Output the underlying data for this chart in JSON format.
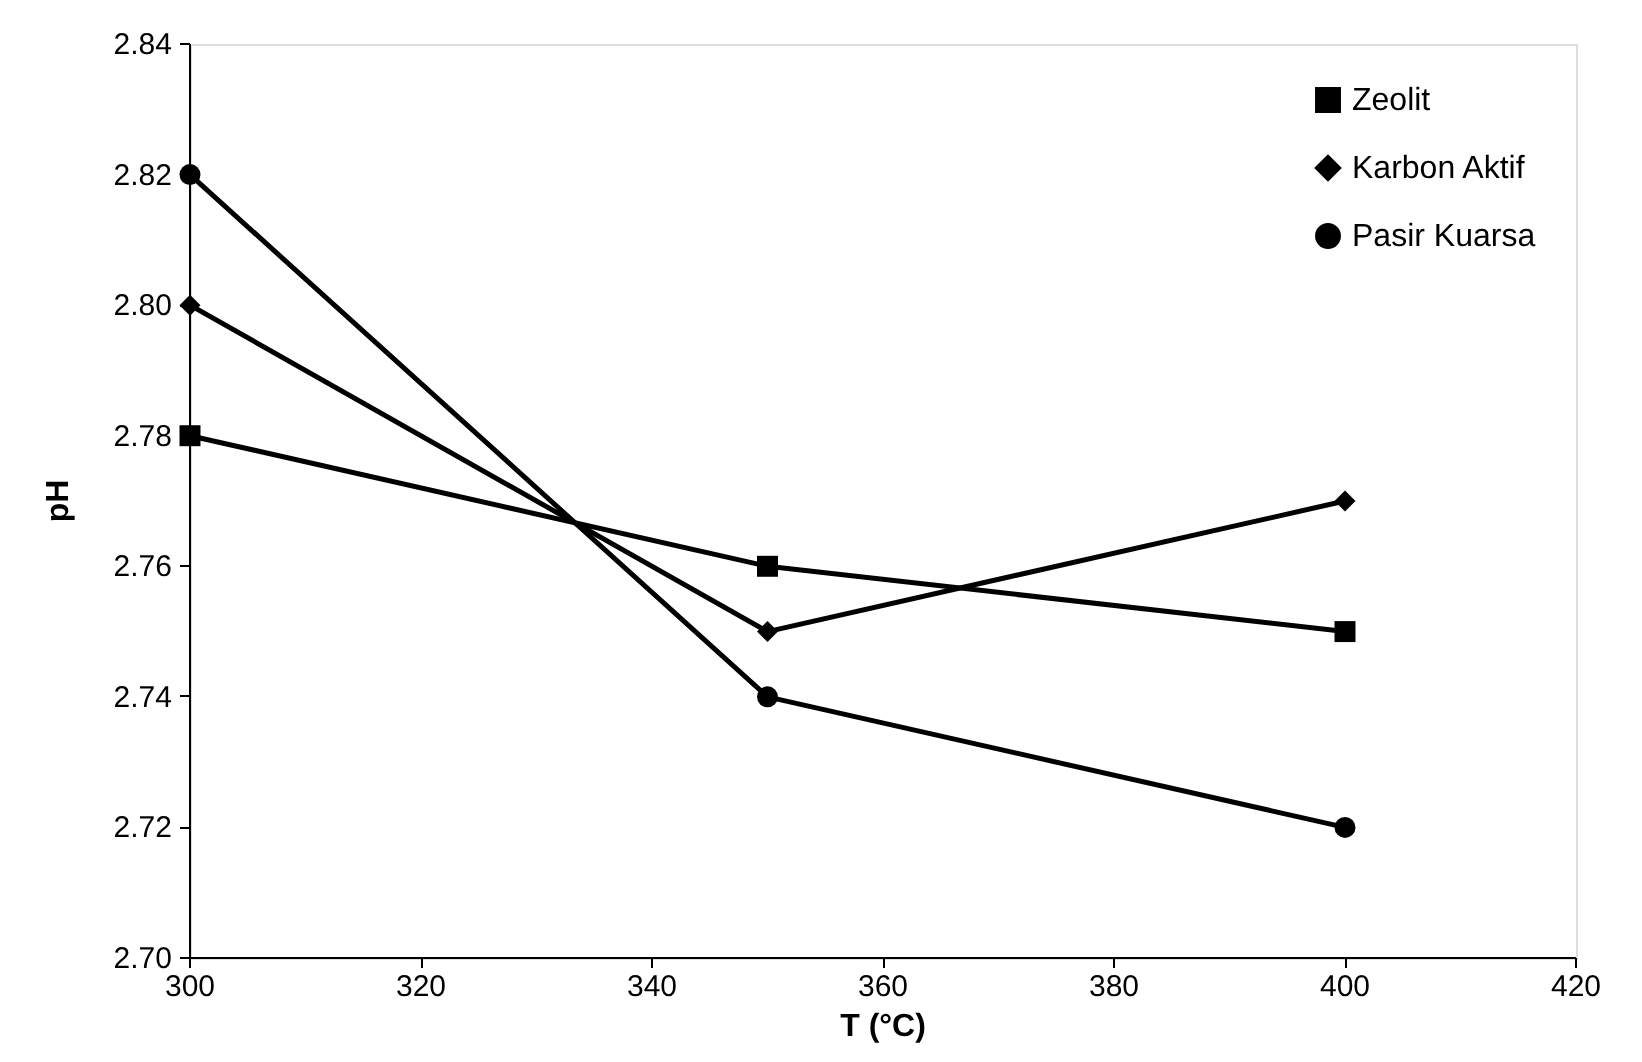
{
  "chart_data": {
    "type": "line",
    "xlabel": "T (°C)",
    "ylabel": "pH",
    "x": [
      300,
      350,
      400
    ],
    "series": [
      {
        "name": "Zeolit",
        "color": "#000000",
        "marker": "square",
        "values": [
          2.78,
          2.76,
          2.75
        ]
      },
      {
        "name": "Karbon Aktif",
        "color": "#000000",
        "marker": "diamond",
        "values": [
          2.8,
          2.75,
          2.77
        ]
      },
      {
        "name": "Pasir Kuarsa",
        "color": "#000000",
        "marker": "circle",
        "values": [
          2.82,
          2.74,
          2.72
        ]
      }
    ],
    "xlim": [
      300,
      420
    ],
    "xticks": [
      300,
      320,
      340,
      360,
      380,
      400,
      420
    ],
    "ylim": [
      2.7,
      2.84
    ],
    "yticks": [
      {
        "value": 2.7,
        "label": "2.70"
      },
      {
        "value": 2.72,
        "label": "2.72"
      },
      {
        "value": 2.74,
        "label": "2.74"
      },
      {
        "value": 2.76,
        "label": "2.76"
      },
      {
        "value": 2.78,
        "label": "2.78"
      },
      {
        "value": 2.8,
        "label": "2.80"
      },
      {
        "value": 2.82,
        "label": "2.82"
      },
      {
        "value": 2.84,
        "label": "2.84"
      }
    ],
    "grid": false,
    "legend": "top right",
    "line_style": "solid"
  }
}
